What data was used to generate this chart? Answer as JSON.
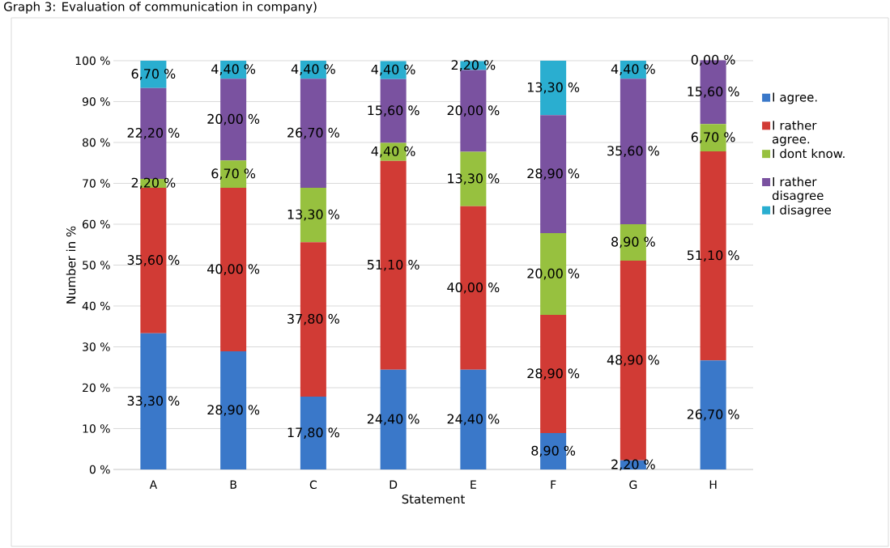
{
  "chart_data": {
    "type": "bar",
    "title": "Graph 3: Evaluation of communication in company)",
    "xlabel": "Statement",
    "ylabel": "Number in  %",
    "stacked": true,
    "grid": "y",
    "legend": "right",
    "categories": [
      "A",
      "B",
      "C",
      "D",
      "E",
      "F",
      "G",
      "H"
    ],
    "ylim": [
      0,
      100
    ],
    "yticks": [
      {
        "value": 0,
        "label": "0 %"
      },
      {
        "value": 10,
        "label": "10 %"
      },
      {
        "value": 20,
        "label": "20 %"
      },
      {
        "value": 30,
        "label": "30 %"
      },
      {
        "value": 40,
        "label": "40 %"
      },
      {
        "value": 50,
        "label": "50 %"
      },
      {
        "value": 60,
        "label": "60 %"
      },
      {
        "value": 70,
        "label": "70 %"
      },
      {
        "value": 80,
        "label": "80 %"
      },
      {
        "value": 90,
        "label": "90 %"
      },
      {
        "value": 100,
        "label": "100 %"
      }
    ],
    "series": [
      {
        "name": "I agree.",
        "color": "#3a78c9",
        "values": [
          33.3,
          28.9,
          17.8,
          24.4,
          24.4,
          8.9,
          2.2,
          26.7
        ],
        "value_labels": [
          "33,30 %",
          "28,90 %",
          "17,80 %",
          "24,40 %",
          "24,40 %",
          "8,90 %",
          "2,20 %",
          "26,70 %"
        ]
      },
      {
        "name": "I rather agree.",
        "color": "#d13b35",
        "values": [
          35.6,
          40.0,
          37.8,
          51.1,
          40.0,
          28.9,
          48.9,
          51.1
        ],
        "value_labels": [
          "35,60 %",
          "40,00 %",
          "37,80 %",
          "51,10 %",
          "40,00 %",
          "28,90 %",
          "48,90 %",
          "51,10 %"
        ]
      },
      {
        "name": "I dont know.",
        "color": "#97c13f",
        "values": [
          2.2,
          6.7,
          13.3,
          4.4,
          13.3,
          20.0,
          8.9,
          6.7
        ],
        "value_labels": [
          "2,20 %",
          "6,70 %",
          "13,30 %",
          "4,40 %",
          "13,30 %",
          "20,00 %",
          "8,90 %",
          "6,70 %"
        ]
      },
      {
        "name": "I rather disagree",
        "color": "#7a52a0",
        "values": [
          22.2,
          20.0,
          26.7,
          15.6,
          20.0,
          28.9,
          35.6,
          15.6
        ],
        "value_labels": [
          "22,20 %",
          "20,00 %",
          "26,70 %",
          "15,60 %",
          "20,00 %",
          "28,90 %",
          "35,60 %",
          "15,60 %"
        ]
      },
      {
        "name": "I disagree",
        "color": "#2aaed0",
        "values": [
          6.7,
          4.4,
          4.4,
          4.4,
          2.2,
          13.3,
          4.4,
          0.0
        ],
        "value_labels": [
          "6,70 %",
          "4,40 %",
          "4,40 %",
          "4,40 %",
          "2,20 %",
          "13,30 %",
          "4,40 %",
          "0,00 %"
        ]
      }
    ]
  }
}
